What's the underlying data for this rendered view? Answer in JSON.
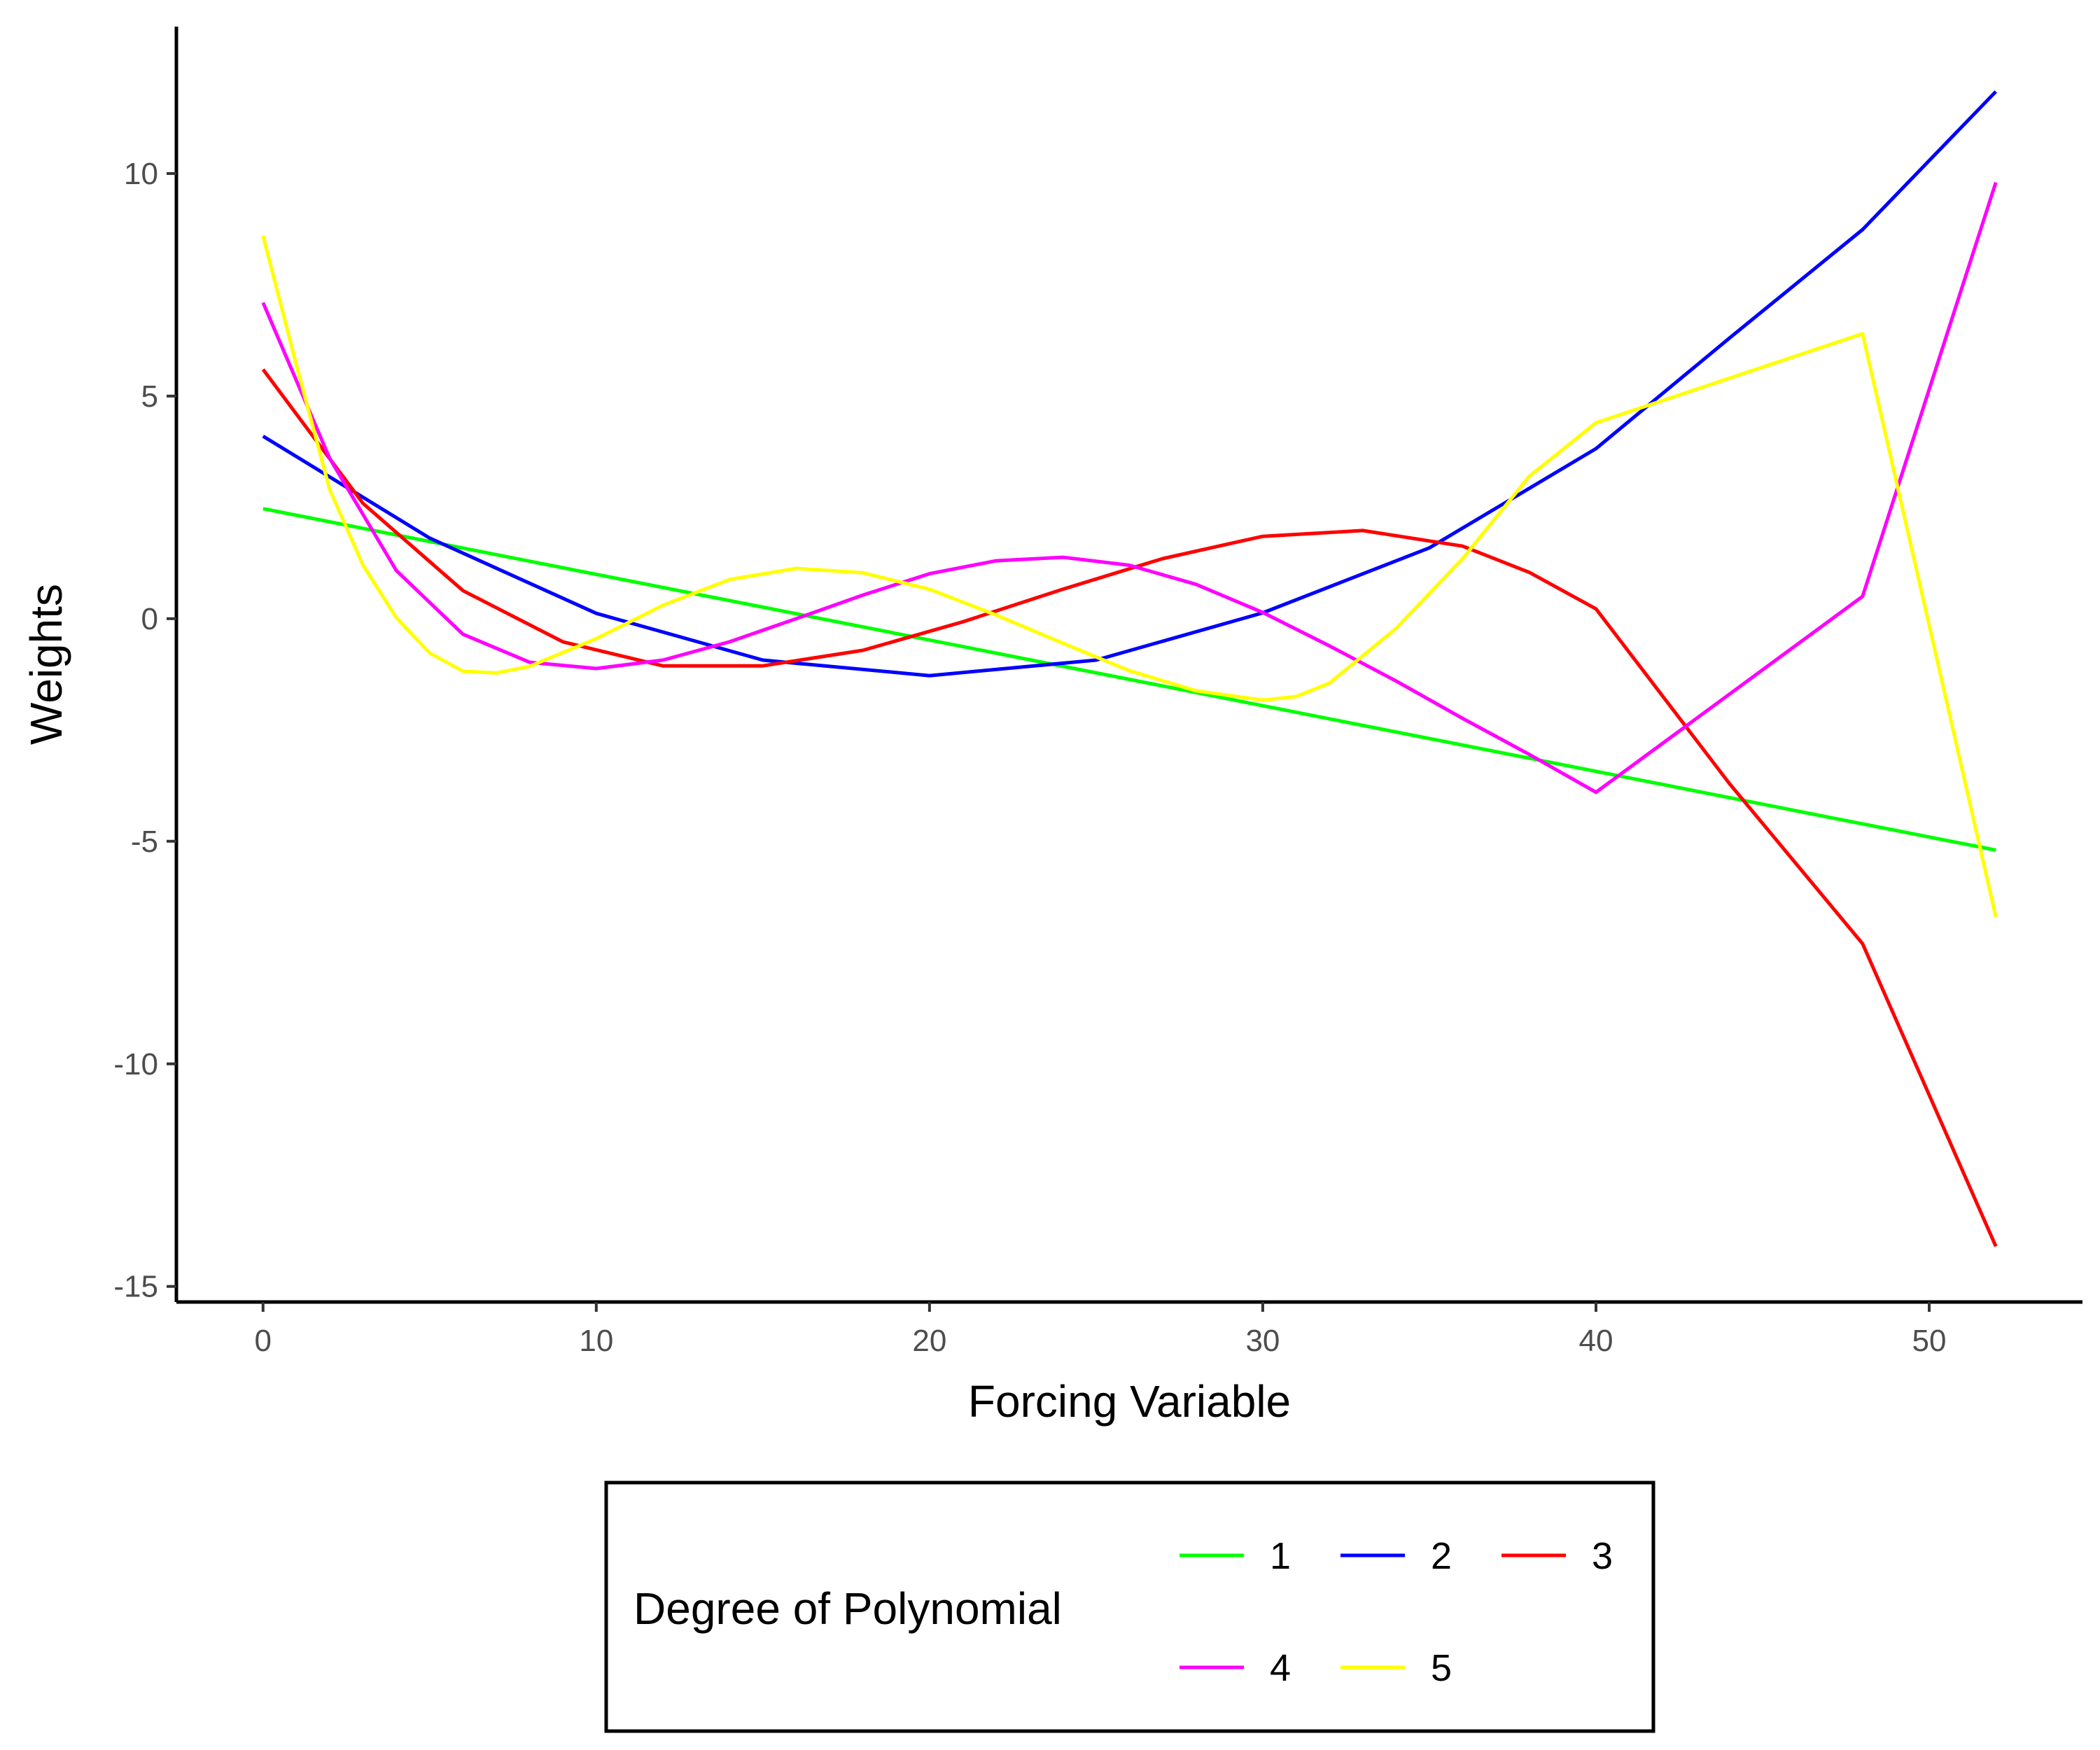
{
  "chart_data": {
    "type": "line",
    "title": "",
    "xlabel": "Forcing Variable",
    "ylabel": "Weights",
    "xlim": [
      -2.6,
      54.6
    ],
    "ylim": [
      -15.35,
      13.3
    ],
    "x_ticks": [
      0,
      10,
      20,
      30,
      40,
      50
    ],
    "y_ticks": [
      -15,
      -10,
      -5,
      0,
      5,
      10
    ],
    "grid": false,
    "legend": {
      "title": "Degree of Polynomial",
      "position": "bottom"
    },
    "series": [
      {
        "name": "1",
        "color": "#00ff00",
        "x": [
          0,
          52
        ],
        "y": [
          2.47,
          -5.2
        ]
      },
      {
        "name": "2",
        "color": "#0000ff",
        "x": [
          0,
          5,
          10,
          15,
          20,
          25,
          30,
          35,
          40,
          44,
          48,
          52
        ],
        "y": [
          4.1,
          1.81,
          0.12,
          -0.93,
          -1.28,
          -0.93,
          0.13,
          1.59,
          3.82,
          6.3,
          8.74,
          11.84
        ]
      },
      {
        "name": "3",
        "color": "#ff0000",
        "x": [
          0,
          3,
          6,
          9,
          12,
          15,
          18,
          21,
          24,
          27,
          30,
          33,
          36,
          38,
          40,
          44,
          48,
          52
        ],
        "y": [
          5.6,
          2.59,
          0.63,
          -0.52,
          -1.06,
          -1.06,
          -0.71,
          -0.07,
          0.66,
          1.35,
          1.85,
          1.98,
          1.63,
          1.04,
          0.22,
          -3.7,
          -7.3,
          -14.1
        ]
      },
      {
        "name": "4",
        "color": "#ff00ff",
        "x": [
          0,
          2,
          4,
          6,
          8,
          10,
          12,
          14,
          16,
          18,
          20,
          22,
          24,
          26,
          28,
          30,
          32,
          34,
          36,
          38,
          40,
          44,
          48,
          52
        ],
        "y": [
          7.1,
          3.6,
          1.08,
          -0.35,
          -0.98,
          -1.12,
          -0.93,
          -0.52,
          0.0,
          0.53,
          1.01,
          1.3,
          1.38,
          1.2,
          0.77,
          0.14,
          -0.61,
          -1.4,
          -2.24,
          -3.05,
          -3.9,
          -1.7,
          0.5,
          9.8
        ]
      },
      {
        "name": "5",
        "color": "#ffff00",
        "x": [
          0,
          1,
          2,
          3,
          4,
          5,
          6,
          7,
          8,
          10,
          12,
          14,
          16,
          18,
          20,
          22,
          24,
          26,
          28,
          30,
          31,
          32,
          34,
          36,
          38,
          40,
          44,
          48,
          52
        ],
        "y": [
          8.6,
          5.7,
          2.9,
          1.2,
          0.02,
          -0.77,
          -1.18,
          -1.22,
          -1.07,
          -0.45,
          0.3,
          0.88,
          1.13,
          1.03,
          0.66,
          0.08,
          -0.55,
          -1.17,
          -1.62,
          -1.83,
          -1.75,
          -1.45,
          -0.22,
          1.35,
          3.2,
          4.4,
          5.4,
          6.4,
          -6.7
        ]
      }
    ]
  }
}
